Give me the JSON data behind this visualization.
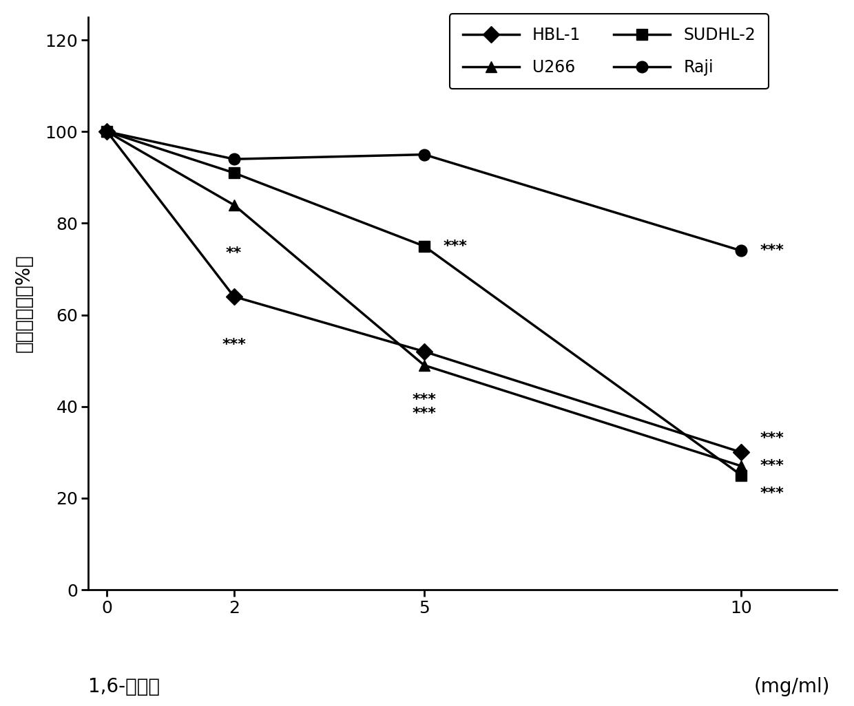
{
  "x": [
    0,
    2,
    5,
    10
  ],
  "series": {
    "HBL-1": [
      100,
      64,
      52,
      30
    ],
    "SUDHL-2": [
      100,
      91,
      75,
      25
    ],
    "U266": [
      100,
      84,
      49,
      27
    ],
    "Raji": [
      100,
      94,
      95,
      74
    ]
  },
  "markers": {
    "HBL-1": "D",
    "SUDHL-2": "s",
    "U266": "^",
    "Raji": "o"
  },
  "ylabel": "相对细胞数（%）",
  "xlabel_left": "1,6-己二醇",
  "xlabel_right": "(mg/ml)",
  "xlim": [
    -0.3,
    11.5
  ],
  "ylim": [
    0,
    125
  ],
  "yticks": [
    0,
    20,
    40,
    60,
    80,
    100,
    120
  ],
  "xticks": [
    0,
    2,
    5,
    10
  ],
  "line_color": "#000000",
  "line_width": 2.5,
  "marker_size": 12,
  "label_fontsize": 20,
  "tick_fontsize": 18,
  "legend_fontsize": 17,
  "annot_fontsize": 16
}
